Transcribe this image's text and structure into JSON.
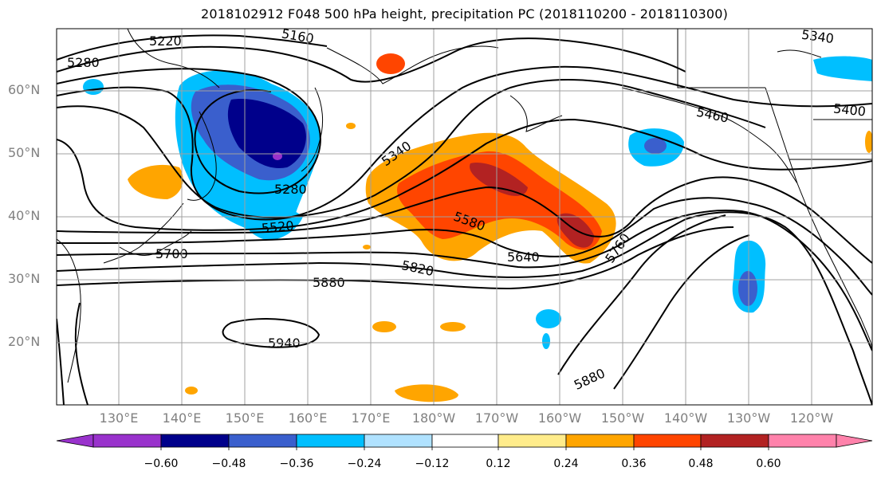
{
  "title": "2018102912 F048 500 hPa height, precipitation PC (2018110200 - 2018110300)",
  "latitude_labels": [
    {
      "lat": 60,
      "text": "60°N"
    },
    {
      "lat": 50,
      "text": "50°N"
    },
    {
      "lat": 40,
      "text": "40°N"
    },
    {
      "lat": 30,
      "text": "30°N"
    },
    {
      "lat": 20,
      "text": "20°N"
    }
  ],
  "longitude_labels": [
    "130°E",
    "140°E",
    "150°E",
    "160°E",
    "170°E",
    "180°W",
    "170°W",
    "160°W",
    "150°W",
    "140°W",
    "130°W",
    "120°W"
  ],
  "contour_labels": [
    "5220",
    "5160",
    "5340",
    "5280",
    "5400",
    "5460",
    "5340",
    "5280",
    "5520",
    "5580",
    "5760",
    "5640",
    "5700",
    "5820",
    "5880",
    "5940",
    "5880"
  ],
  "colorbar": {
    "tick_labels": [
      "−0.60",
      "−0.48",
      "−0.36",
      "−0.24",
      "−0.12",
      "0.12",
      "0.24",
      "0.36",
      "0.48",
      "0.60"
    ],
    "colors": [
      "#9932cc",
      "#00008b",
      "#3a5fcd",
      "#00bfff",
      "#b0e2ff",
      "#ffffff",
      "#ffec8b",
      "#ffa500",
      "#ff4500",
      "#b22222",
      "#ff82ab"
    ]
  }
}
